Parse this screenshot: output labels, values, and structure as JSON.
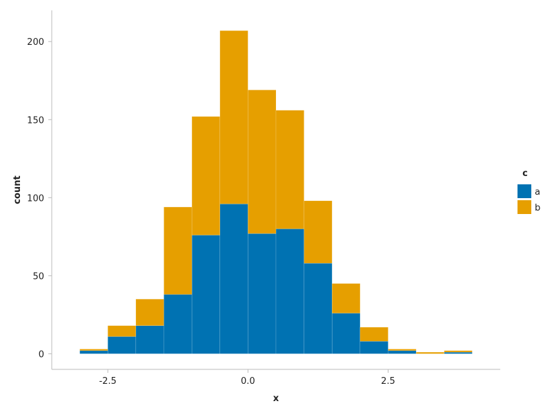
{
  "chart_data": {
    "type": "bar",
    "stacked": true,
    "xlabel": "x",
    "ylabel": "count",
    "xlim": [
      -3.5,
      4.5
    ],
    "ylim": [
      -10,
      220
    ],
    "x_ticks": [
      -2.5,
      0.0,
      2.5
    ],
    "x_tick_labels": [
      "-2.5",
      "0.0",
      "2.5"
    ],
    "y_ticks": [
      0,
      50,
      100,
      150,
      200
    ],
    "y_tick_labels": [
      "0",
      "50",
      "100",
      "150",
      "200"
    ],
    "grid": false,
    "legend": {
      "title": "c",
      "placement": "right"
    },
    "bins": [
      [
        -3.0,
        -2.5
      ],
      [
        -2.5,
        -2.0
      ],
      [
        -2.0,
        -1.5
      ],
      [
        -1.5,
        -1.0
      ],
      [
        -1.0,
        -0.5
      ],
      [
        -0.5,
        0.0
      ],
      [
        0.0,
        0.5
      ],
      [
        0.5,
        1.0
      ],
      [
        1.0,
        1.5
      ],
      [
        1.5,
        2.0
      ],
      [
        2.0,
        2.5
      ],
      [
        2.5,
        3.0
      ],
      [
        3.0,
        3.5
      ],
      [
        3.5,
        4.0
      ]
    ],
    "series": [
      {
        "name": "a",
        "color": "#0072b2",
        "values": [
          2,
          11,
          18,
          38,
          76,
          96,
          77,
          80,
          58,
          26,
          8,
          2,
          0,
          1
        ]
      },
      {
        "name": "b",
        "color": "#e69f00",
        "values": [
          1,
          7,
          17,
          56,
          76,
          111,
          92,
          76,
          40,
          19,
          9,
          1,
          1,
          1
        ]
      }
    ]
  }
}
